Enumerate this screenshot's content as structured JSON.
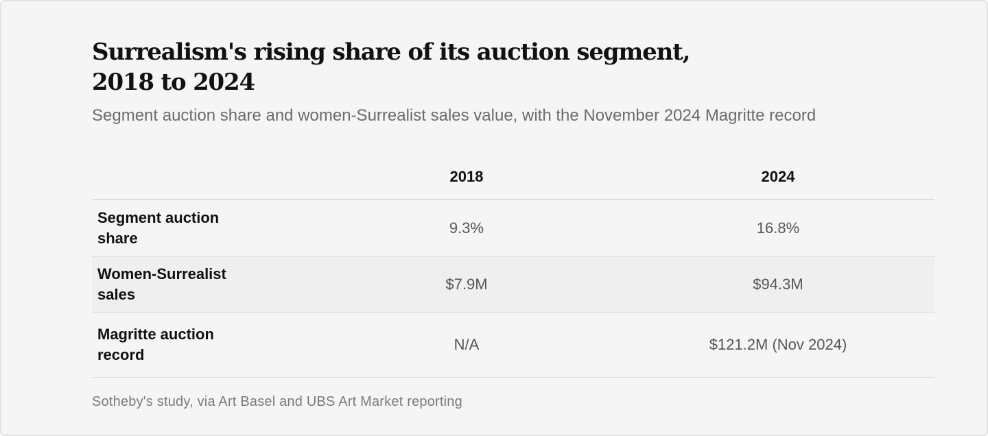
{
  "chart_data": {
    "type": "table",
    "title": "Surrealism's rising share of its auction segment, 2018 to 2024",
    "subtitle": "Segment auction share and women-Surrealist sales value, with the November 2024 Magritte record",
    "columns": [
      "",
      "2018",
      "2024"
    ],
    "rows": [
      {
        "label": "Segment auction share",
        "values": [
          "9.3%",
          "16.8%"
        ]
      },
      {
        "label": "Women-Surrealist sales",
        "values": [
          "$7.9M",
          "$94.3M"
        ]
      },
      {
        "label": "Magritte auction record",
        "values": [
          "N/A",
          "$121.2M (Nov 2024)"
        ]
      }
    ],
    "source": "Sotheby's study, via Art Basel and UBS Art Market reporting"
  }
}
